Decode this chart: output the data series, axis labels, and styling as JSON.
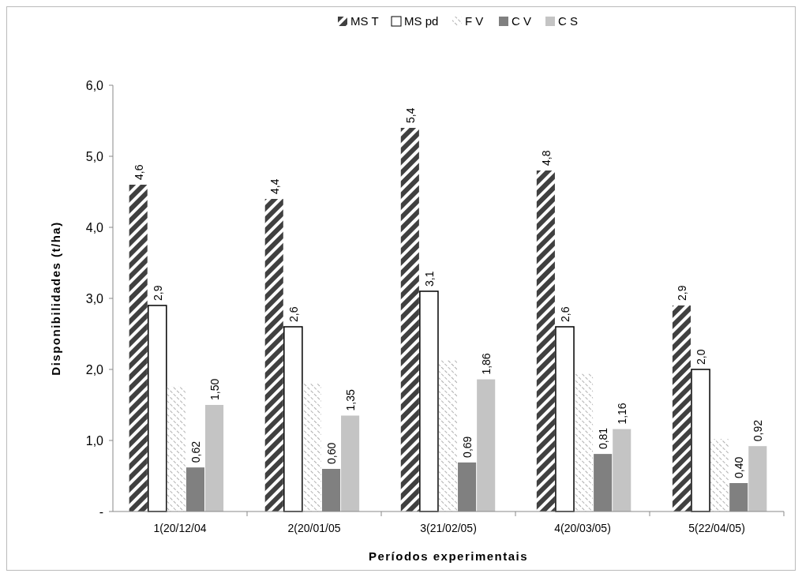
{
  "chart_data": {
    "type": "bar",
    "xlabel": "Períodos experimentais",
    "ylabel": "Disponibilidades (t/ha)",
    "categories": [
      "1(20/12/04",
      "2(20/01/05",
      "3(21/02/05)",
      "4(20/03/05)",
      "5(22/04/05)"
    ],
    "series": [
      {
        "name": "MS T",
        "color": "#404040",
        "values": [
          4.6,
          4.4,
          5.4,
          4.8,
          2.9
        ],
        "value_labels": [
          "4,6",
          "4,4",
          "5,4",
          "4,8",
          "2,9"
        ]
      },
      {
        "name": "MS pd",
        "color": "#ffffff",
        "values": [
          2.9,
          2.6,
          3.1,
          2.6,
          2.0
        ],
        "value_labels": [
          "2,9",
          "2,6",
          "3,1",
          "2,6",
          "2,0"
        ]
      },
      {
        "name": "F V",
        "color": "#b0b0b0",
        "values": [
          1.76,
          1.8,
          2.13,
          1.94,
          1.02
        ]
      },
      {
        "name": "C V",
        "color": "#808080",
        "values": [
          0.62,
          0.6,
          0.69,
          0.81,
          0.4
        ],
        "value_labels": [
          "0,62",
          "0,60",
          "0,69",
          "0,81",
          "0,40"
        ]
      },
      {
        "name": "C S",
        "color": "#c4c4c4",
        "values": [
          1.5,
          1.35,
          1.86,
          1.16,
          0.92
        ],
        "value_labels": [
          "1,50",
          "1,35",
          "1,86",
          "1,16",
          "0,92"
        ]
      }
    ],
    "ylim": [
      0,
      6
    ],
    "yticks": [
      {
        "value": 0,
        "label": "-"
      },
      {
        "value": 1,
        "label": "1,0"
      },
      {
        "value": 2,
        "label": "2,0"
      },
      {
        "value": 3,
        "label": "3,0"
      },
      {
        "value": 4,
        "label": "4,0"
      },
      {
        "value": 5,
        "label": "5,0"
      },
      {
        "value": 6,
        "label": "6,0"
      }
    ],
    "legend": "top",
    "grid": false
  }
}
